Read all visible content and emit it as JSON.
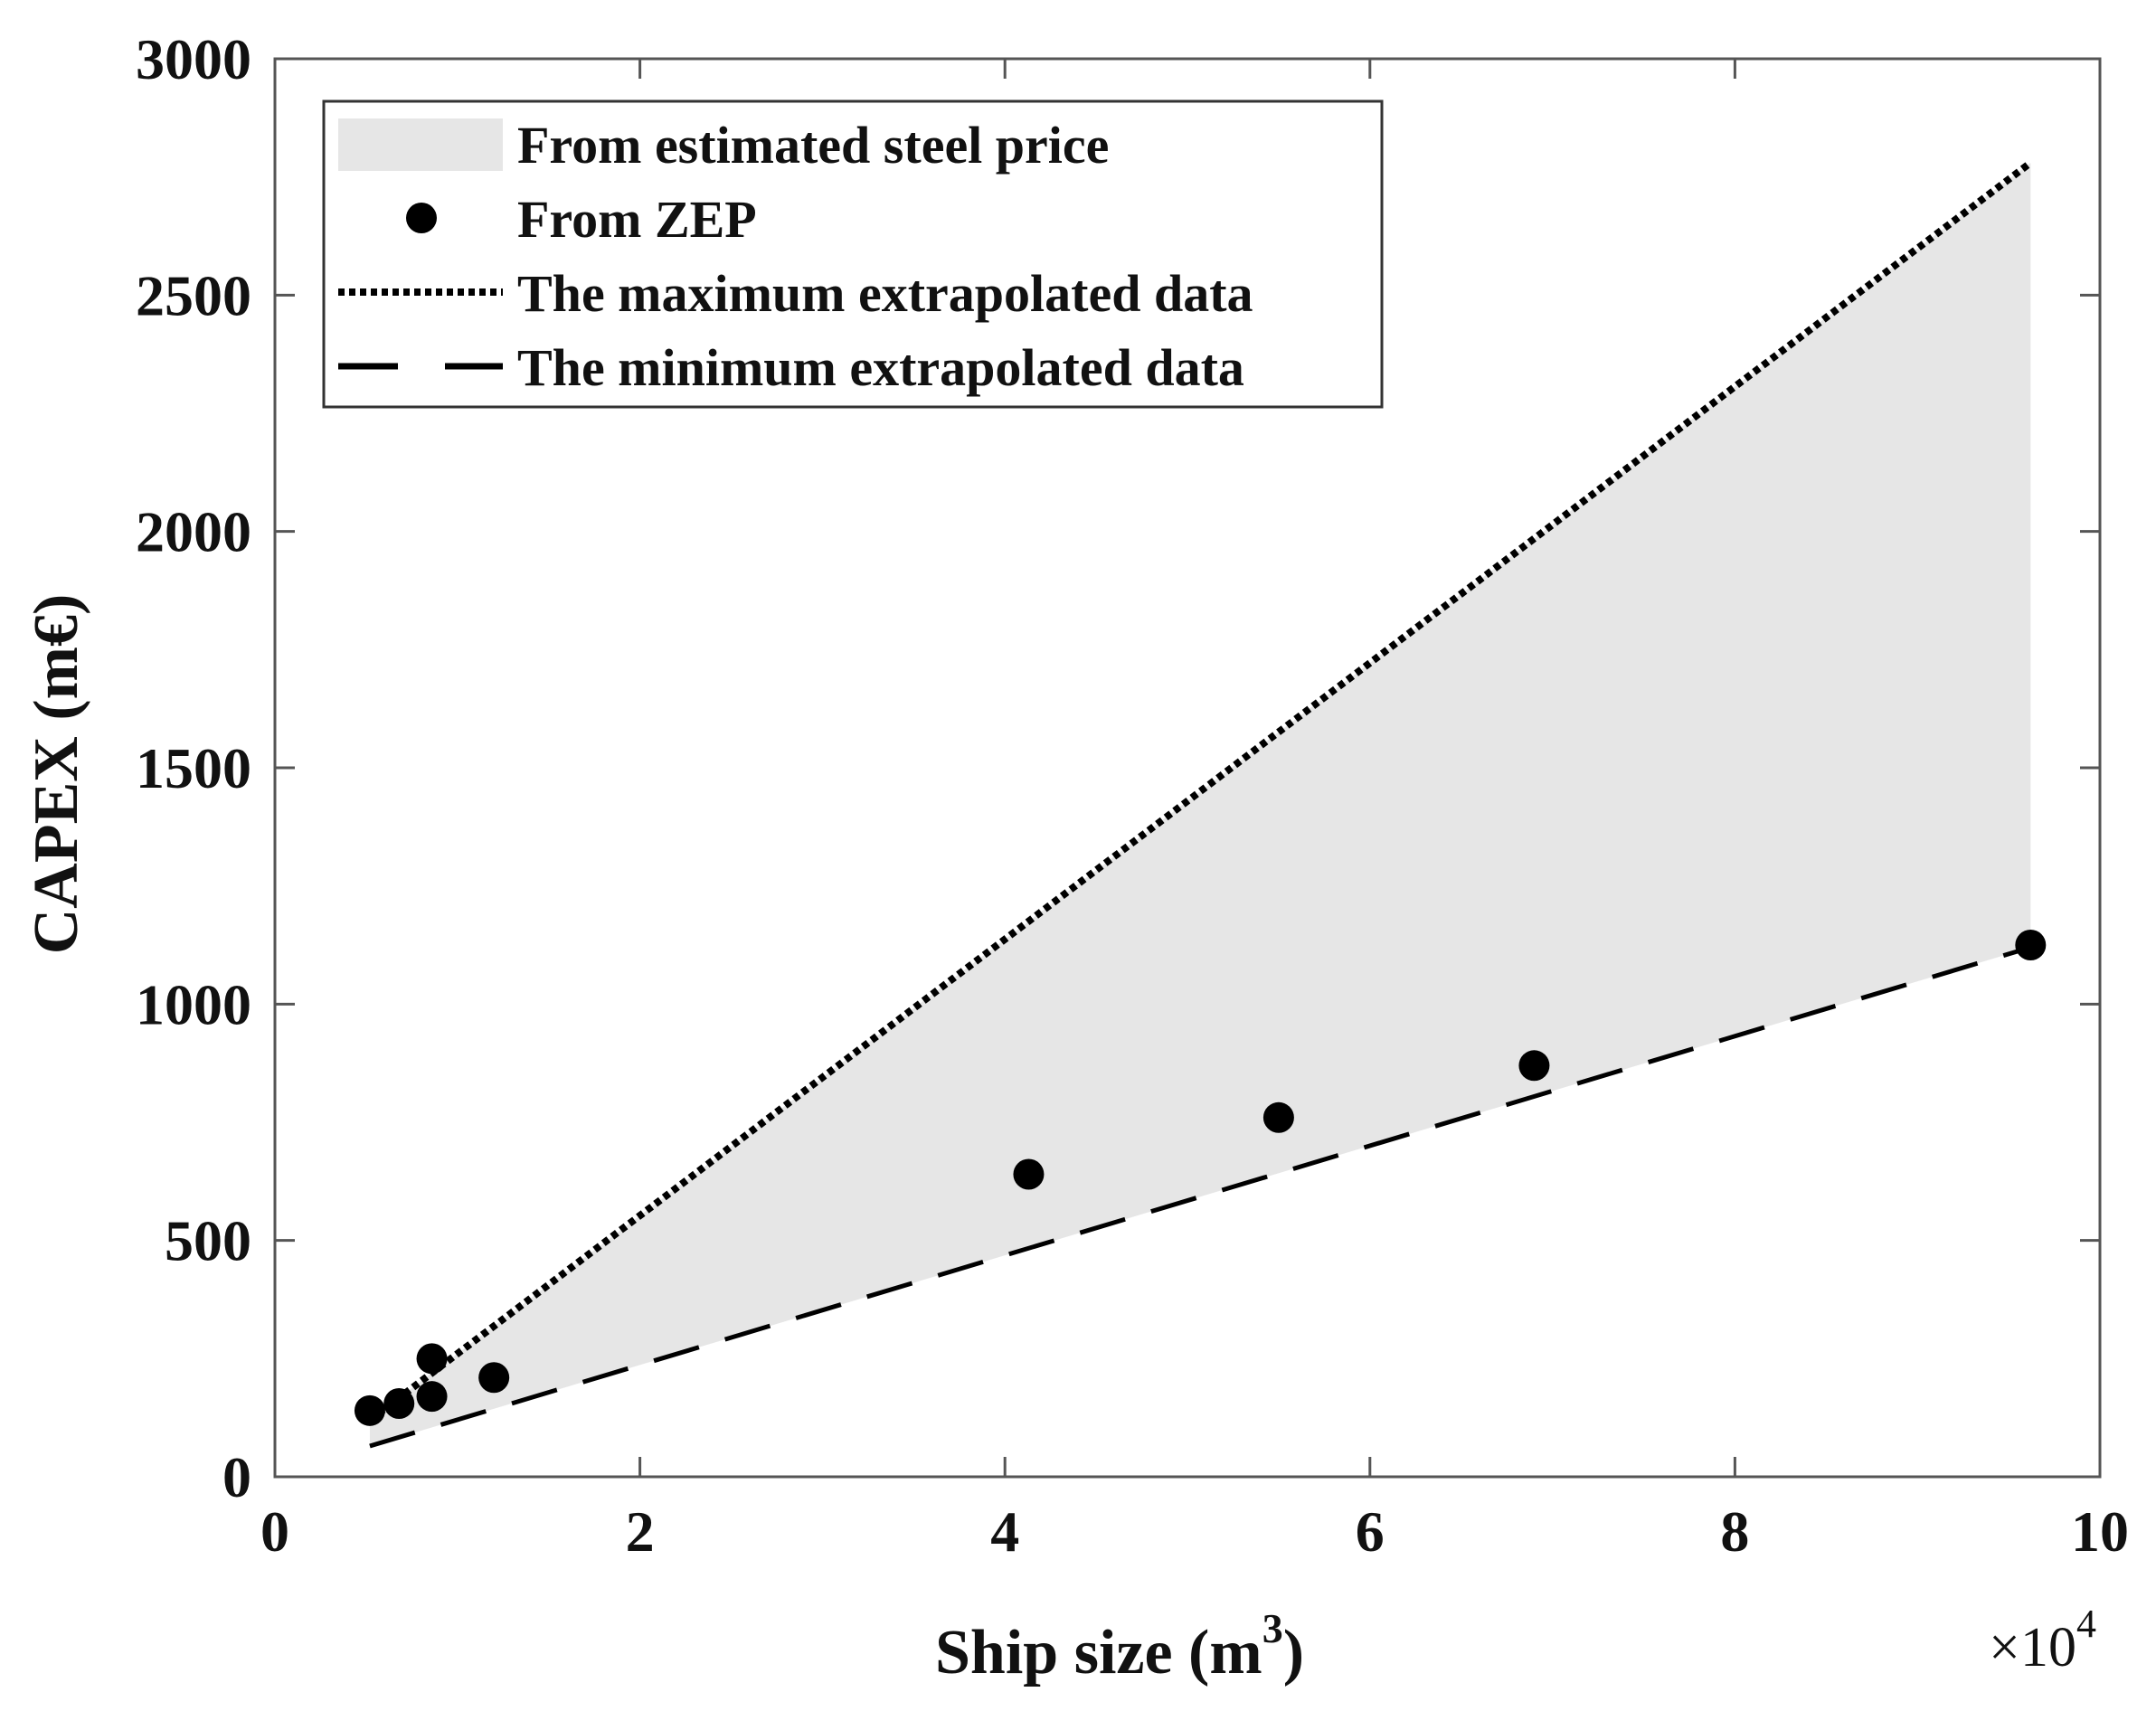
{
  "chart_data": {
    "type": "scatter",
    "title": "",
    "xlabel": "Ship size (m",
    "xlabel_sup": "3",
    "xlabel_close": ")",
    "ylabel": "CAPEX (m€)",
    "x_multiplier_label": "×10",
    "x_multiplier_exp": "4",
    "xlim": [
      0,
      10
    ],
    "ylim": [
      0,
      3000
    ],
    "xticks": [
      0,
      2,
      4,
      6,
      8,
      10
    ],
    "yticks": [
      0,
      500,
      1000,
      1500,
      2000,
      2500,
      3000
    ],
    "xtick_labels": [
      "0",
      "2",
      "4",
      "6",
      "8",
      "10"
    ],
    "ytick_labels": [
      "0",
      "500",
      "1000",
      "1500",
      "2000",
      "2500",
      "3000"
    ],
    "grid": false,
    "legend_position": "top-left",
    "series": [
      {
        "name": "From estimated steel price",
        "kind": "band",
        "color": "#e6e6e6",
        "x": [
          0.52,
          9.62
        ],
        "upper": [
          120,
          2780
        ],
        "lower": [
          65,
          1120
        ]
      },
      {
        "name": "From ZEP",
        "kind": "points",
        "color": "#000000",
        "x": [
          0.52,
          0.68,
          0.86,
          0.86,
          1.2,
          4.13,
          5.5,
          6.9,
          9.62
        ],
        "y": [
          140,
          155,
          170,
          250,
          210,
          640,
          760,
          870,
          1125
        ]
      },
      {
        "name": "The maximum extrapolated data",
        "kind": "line",
        "style": "dotted",
        "color": "#000000",
        "x": [
          0.52,
          9.62
        ],
        "y": [
          120,
          2780
        ]
      },
      {
        "name": "The minimum extrapolated data",
        "kind": "line",
        "style": "dashed",
        "color": "#000000",
        "x": [
          0.52,
          9.62
        ],
        "y": [
          65,
          1120
        ]
      }
    ]
  }
}
